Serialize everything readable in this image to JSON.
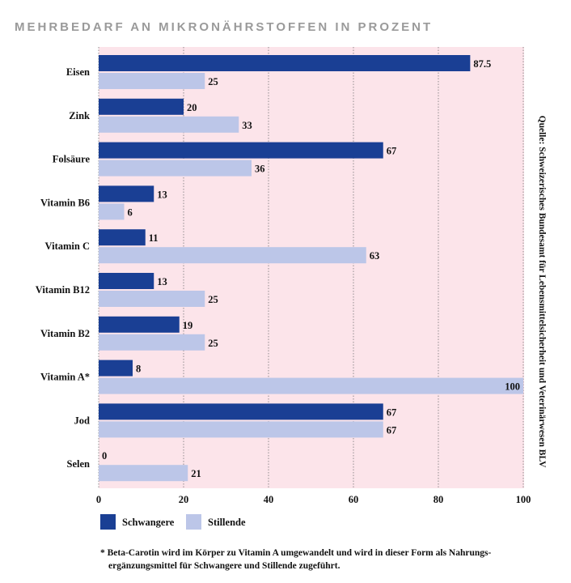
{
  "chart_data": {
    "type": "bar",
    "orientation": "horizontal",
    "title": "MEHRBEDARF AN MIKRONÄHRSTOFFEN IN PROZENT",
    "categories": [
      "Eisen",
      "Zink",
      "Folsäure",
      "Vitamin B6",
      "Vitamin C",
      "Vitamin B12",
      "Vitamin B2",
      "Vitamin A*",
      "Jod",
      "Selen"
    ],
    "series": [
      {
        "name": "Schwangere",
        "color": "#1a3f94",
        "values": [
          87.5,
          20,
          67,
          13,
          11,
          13,
          19,
          8,
          67,
          0
        ]
      },
      {
        "name": "Stillende",
        "color": "#bcc6e8",
        "values": [
          25,
          33,
          36,
          6,
          63,
          25,
          25,
          100,
          67,
          21
        ]
      }
    ],
    "xlim": [
      0,
      100
    ],
    "xticks": [
      0,
      20,
      40,
      60,
      80,
      100
    ],
    "grid": "vertical dotted",
    "legend_placement": "bottom-left",
    "plot_background": "#fce4ea",
    "source": "Quelle: Schweizerisches Bundesamt für Lebensmittelsicherheit und Veterinärwesen BLV",
    "footnote": [
      "* Beta-Carotin wird im Körper zu Vitamin A umgewandelt und wird in dieser Form als Nahrungs-",
      "ergänzungsmittel für Schwangere und Stillende zugeführt."
    ]
  }
}
